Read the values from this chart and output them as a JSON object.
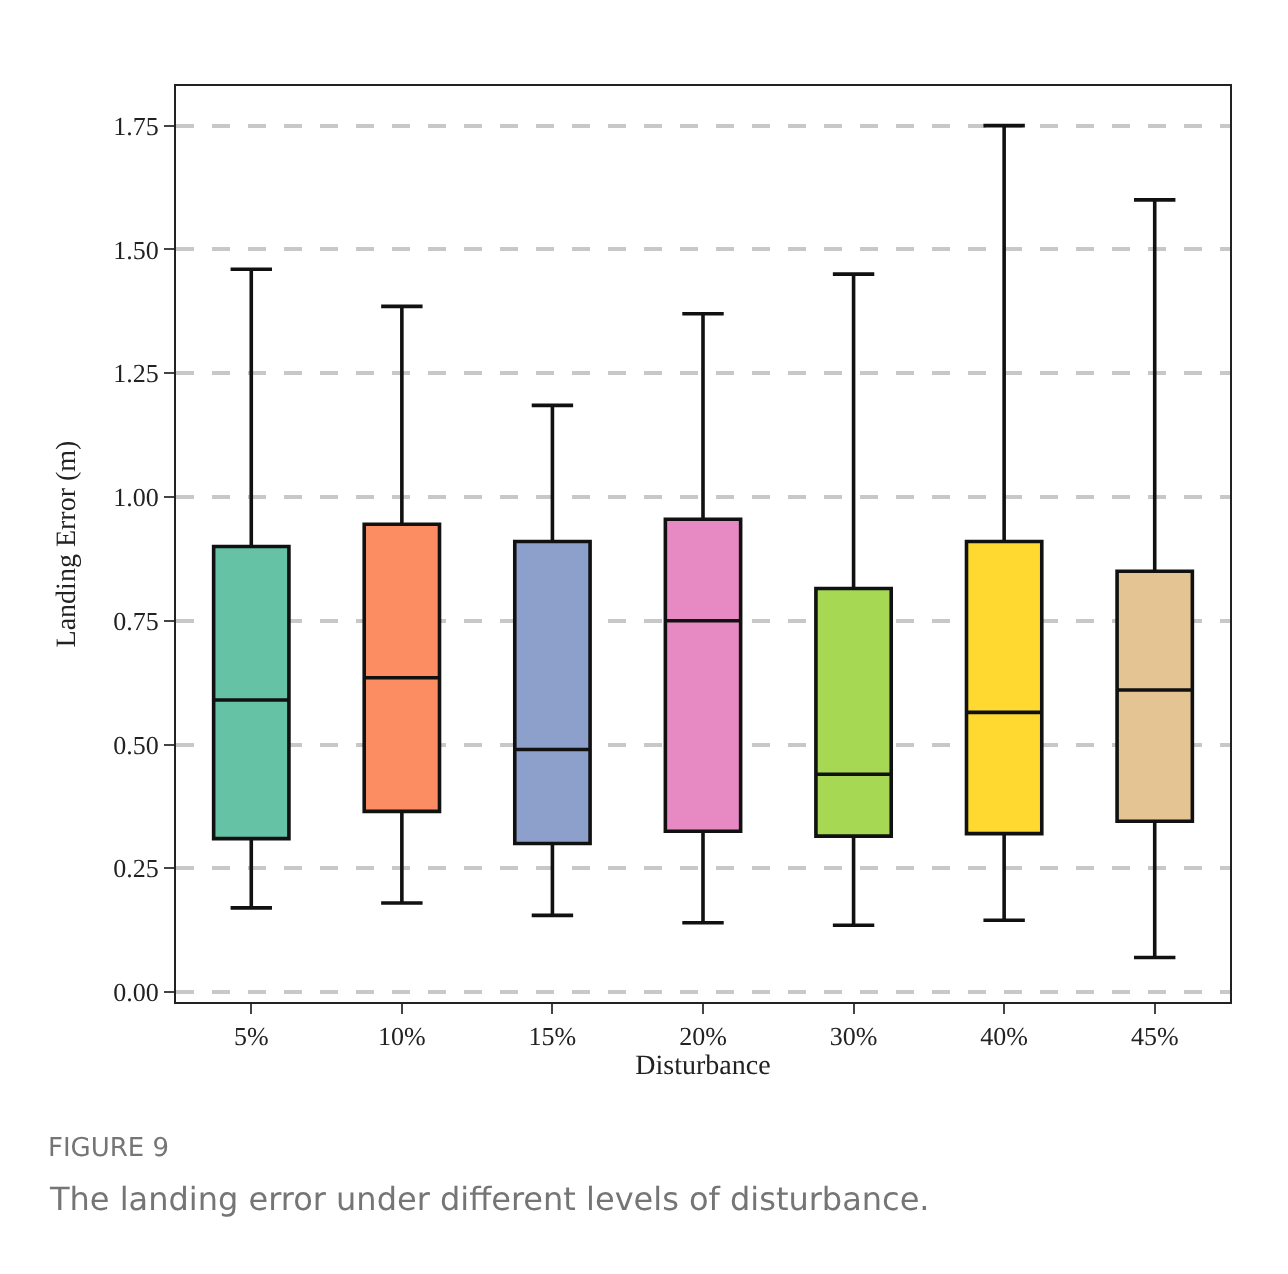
{
  "chart_data": {
    "type": "box",
    "title": "FIGURE 9",
    "subtitle": "The landing error under different levels of disturbance.",
    "xlabel": "Disturbance",
    "ylabel": "Landing Error (m)",
    "categories": [
      "5%",
      "10%",
      "15%",
      "20%",
      "30%",
      "40%",
      "45%"
    ],
    "colors": [
      "#66c2a5",
      "#fc8d62",
      "#8da0cb",
      "#e78ac3",
      "#a6d854",
      "#ffd92f",
      "#e5c494"
    ],
    "boxes": [
      {
        "low": 0.17,
        "q1": 0.31,
        "median": 0.59,
        "q3": 0.9,
        "high": 1.46
      },
      {
        "low": 0.18,
        "q1": 0.365,
        "median": 0.635,
        "q3": 0.945,
        "high": 1.385
      },
      {
        "low": 0.155,
        "q1": 0.3,
        "median": 0.49,
        "q3": 0.91,
        "high": 1.185
      },
      {
        "low": 0.14,
        "q1": 0.325,
        "median": 0.75,
        "q3": 0.955,
        "high": 1.37
      },
      {
        "low": 0.135,
        "q1": 0.315,
        "median": 0.44,
        "q3": 0.815,
        "high": 1.45
      },
      {
        "low": 0.145,
        "q1": 0.32,
        "median": 0.565,
        "q3": 0.91,
        "high": 1.75
      },
      {
        "low": 0.07,
        "q1": 0.345,
        "median": 0.61,
        "q3": 0.85,
        "high": 1.6
      }
    ],
    "ylim": [
      -0.02,
      1.83
    ],
    "yticks": [
      {
        "value": 0,
        "label": "0.00"
      },
      0.25,
      {
        "value": 0.5,
        "label": "0.50"
      },
      0.75,
      {
        "value": 1,
        "label": "1.00"
      },
      1.25,
      {
        "value": 1.5,
        "label": "1.50"
      },
      1.75
    ],
    "grid": "y",
    "legend": false
  }
}
